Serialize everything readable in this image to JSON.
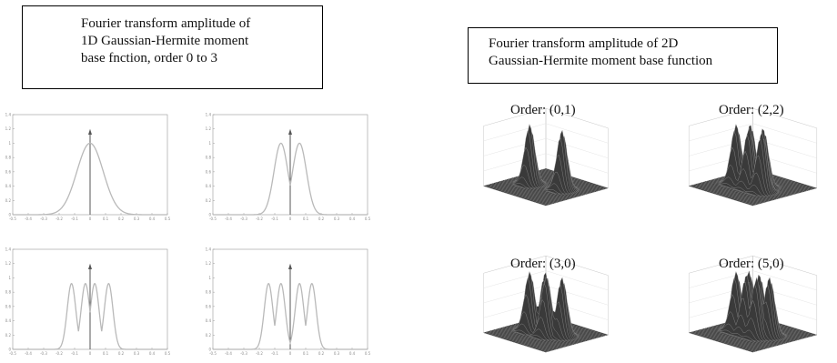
{
  "left_caption": {
    "lines": [
      "Fourier transform amplitude of",
      "1D Gaussian-Hermite moment",
      "base fnction, order 0 to 3"
    ]
  },
  "right_caption": {
    "lines": [
      "Fourier transform amplitude of 2D",
      "Gaussian-Hermite moment base function"
    ]
  },
  "chart_data": [
    {
      "type": "line",
      "order": 0,
      "lobes": [
        0
      ],
      "x_ticks": [
        "-0.5",
        "-0.4",
        "-0.3",
        "-0.2",
        "-0.1",
        "0",
        "0.1",
        "0.2",
        "0.3",
        "0.4",
        "0.5"
      ],
      "y_ticks": [
        "0",
        "0.2",
        "0.4",
        "0.6",
        "0.8",
        "1",
        "1.2",
        "1.4"
      ],
      "xlim": [
        -0.5,
        0.5
      ],
      "ylim": [
        0,
        1.4
      ]
    },
    {
      "type": "line",
      "order": 1,
      "lobes": [
        -0.06,
        0.06
      ],
      "x_ticks": [
        "-0.5",
        "-0.4",
        "-0.3",
        "-0.2",
        "-0.1",
        "0",
        "0.1",
        "0.2",
        "0.3",
        "0.4",
        "0.5"
      ],
      "y_ticks": [
        "0",
        "0.2",
        "0.4",
        "0.6",
        "0.8",
        "1",
        "1.2",
        "1.4"
      ],
      "xlim": [
        -0.5,
        0.5
      ],
      "ylim": [
        0,
        1.4
      ]
    },
    {
      "type": "line",
      "order": 2,
      "lobes": [
        -0.12,
        -0.03,
        0.03,
        0.12
      ],
      "x_ticks": [
        "-0.5",
        "-0.4",
        "-0.3",
        "-0.2",
        "-0.1",
        "0",
        "0.1",
        "0.2",
        "0.3",
        "0.4",
        "0.5"
      ],
      "y_ticks": [
        "0",
        "0.2",
        "0.4",
        "0.6",
        "0.8",
        "1",
        "1.2",
        "1.4"
      ],
      "xlim": [
        -0.5,
        0.5
      ],
      "ylim": [
        0,
        1.4
      ]
    },
    {
      "type": "line",
      "order": 3,
      "lobes": [
        -0.14,
        -0.06,
        0.06,
        0.14
      ],
      "x_ticks": [
        "-0.5",
        "-0.4",
        "-0.3",
        "-0.2",
        "-0.1",
        "0",
        "0.1",
        "0.2",
        "0.3",
        "0.4",
        "0.5"
      ],
      "y_ticks": [
        "0",
        "0.2",
        "0.4",
        "0.6",
        "0.8",
        "1",
        "1.2",
        "1.4"
      ],
      "xlim": [
        -0.5,
        0.5
      ],
      "ylim": [
        0,
        1.4
      ]
    }
  ],
  "surface_plots": [
    {
      "label": "Order: (0,1)",
      "peaks": 2
    },
    {
      "label": "Order: (2,2)",
      "peaks": 5
    },
    {
      "label": "Order: (3,0)",
      "peaks": 4
    },
    {
      "label": "Order: (5,0)",
      "peaks": 6
    }
  ],
  "colors": {
    "curve": "#b9b9b9",
    "axis": "#9a9a9a",
    "box_border": "#000000"
  }
}
